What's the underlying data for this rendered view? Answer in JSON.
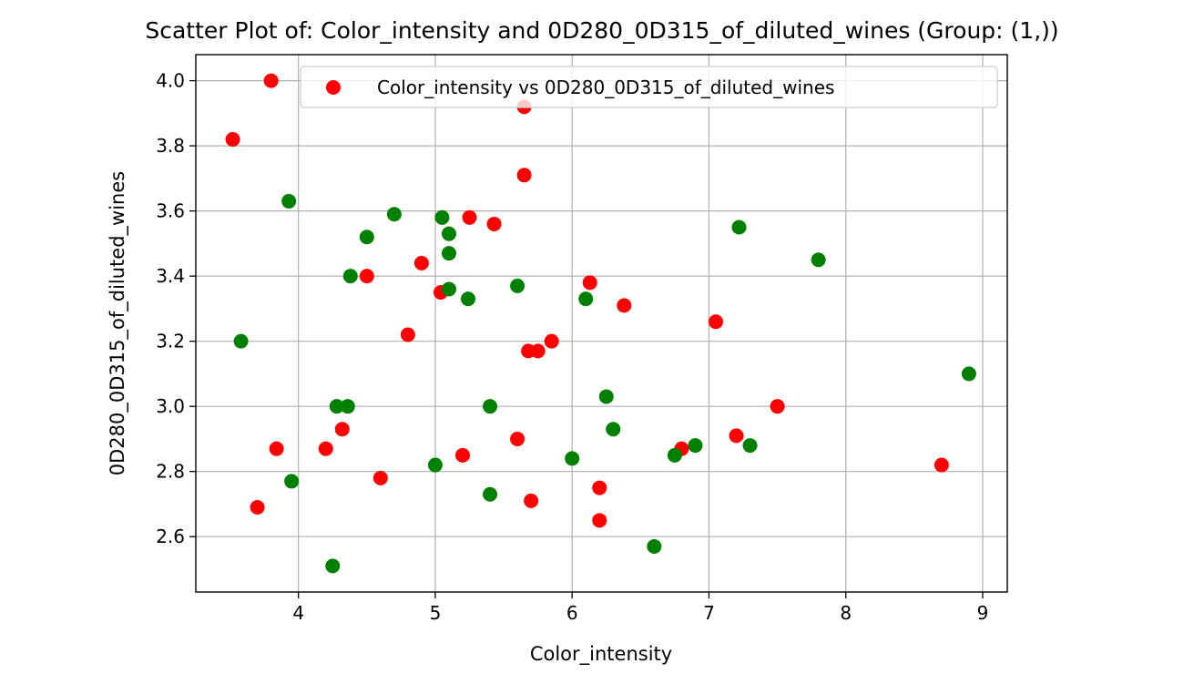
{
  "chart_data": {
    "type": "scatter",
    "title": "Scatter Plot of: Color_intensity and 0D280_0D315_of_diluted_wines (Group: (1,))",
    "xlabel": "Color_intensity",
    "ylabel": "0D280_0D315_of_diluted_wines",
    "xlim": [
      3.25,
      9.18
    ],
    "ylim": [
      2.43,
      4.08
    ],
    "xticks": [
      4,
      5,
      6,
      7,
      8,
      9
    ],
    "yticks": [
      2.6,
      2.8,
      3.0,
      3.2,
      3.4,
      3.6,
      3.8,
      4.0
    ],
    "grid": true,
    "legend": {
      "placement": "top-right",
      "entries": [
        "Color_intensity vs 0D280_0D315_of_diluted_wines"
      ]
    },
    "series": [
      {
        "name": "Color_intensity vs 0D280_0D315_of_diluted_wines",
        "color": "#ff0000",
        "points": [
          [
            3.52,
            3.82
          ],
          [
            3.8,
            4.0
          ],
          [
            5.65,
            3.92
          ],
          [
            5.65,
            3.71
          ],
          [
            5.25,
            3.58
          ],
          [
            5.43,
            3.56
          ],
          [
            4.9,
            3.44
          ],
          [
            4.5,
            3.4
          ],
          [
            5.04,
            3.35
          ],
          [
            6.13,
            3.38
          ],
          [
            6.38,
            3.31
          ],
          [
            7.05,
            3.26
          ],
          [
            4.8,
            3.22
          ],
          [
            5.68,
            3.17
          ],
          [
            5.75,
            3.17
          ],
          [
            5.85,
            3.2
          ],
          [
            7.5,
            3.0
          ],
          [
            4.32,
            2.93
          ],
          [
            3.84,
            2.87
          ],
          [
            4.2,
            2.87
          ],
          [
            5.6,
            2.9
          ],
          [
            7.2,
            2.91
          ],
          [
            6.8,
            2.87
          ],
          [
            5.2,
            2.85
          ],
          [
            4.6,
            2.78
          ],
          [
            8.7,
            2.82
          ],
          [
            6.2,
            2.75
          ],
          [
            5.7,
            2.71
          ],
          [
            3.7,
            2.69
          ],
          [
            6.2,
            2.65
          ]
        ]
      },
      {
        "color": "#008000",
        "points": [
          [
            3.93,
            3.63
          ],
          [
            4.7,
            3.59
          ],
          [
            5.05,
            3.58
          ],
          [
            5.1,
            3.53
          ],
          [
            4.5,
            3.52
          ],
          [
            5.1,
            3.47
          ],
          [
            7.22,
            3.55
          ],
          [
            7.8,
            3.45
          ],
          [
            4.38,
            3.4
          ],
          [
            5.1,
            3.36
          ],
          [
            5.6,
            3.37
          ],
          [
            5.24,
            3.33
          ],
          [
            6.1,
            3.33
          ],
          [
            3.58,
            3.2
          ],
          [
            4.28,
            3.0
          ],
          [
            4.36,
            3.0
          ],
          [
            5.4,
            3.0
          ],
          [
            6.25,
            3.03
          ],
          [
            6.3,
            2.93
          ],
          [
            8.9,
            3.1
          ],
          [
            6.9,
            2.88
          ],
          [
            7.3,
            2.88
          ],
          [
            6.75,
            2.85
          ],
          [
            5.0,
            2.82
          ],
          [
            6.0,
            2.84
          ],
          [
            3.95,
            2.77
          ],
          [
            5.4,
            2.73
          ],
          [
            6.6,
            2.57
          ],
          [
            4.25,
            2.51
          ]
        ]
      }
    ]
  }
}
